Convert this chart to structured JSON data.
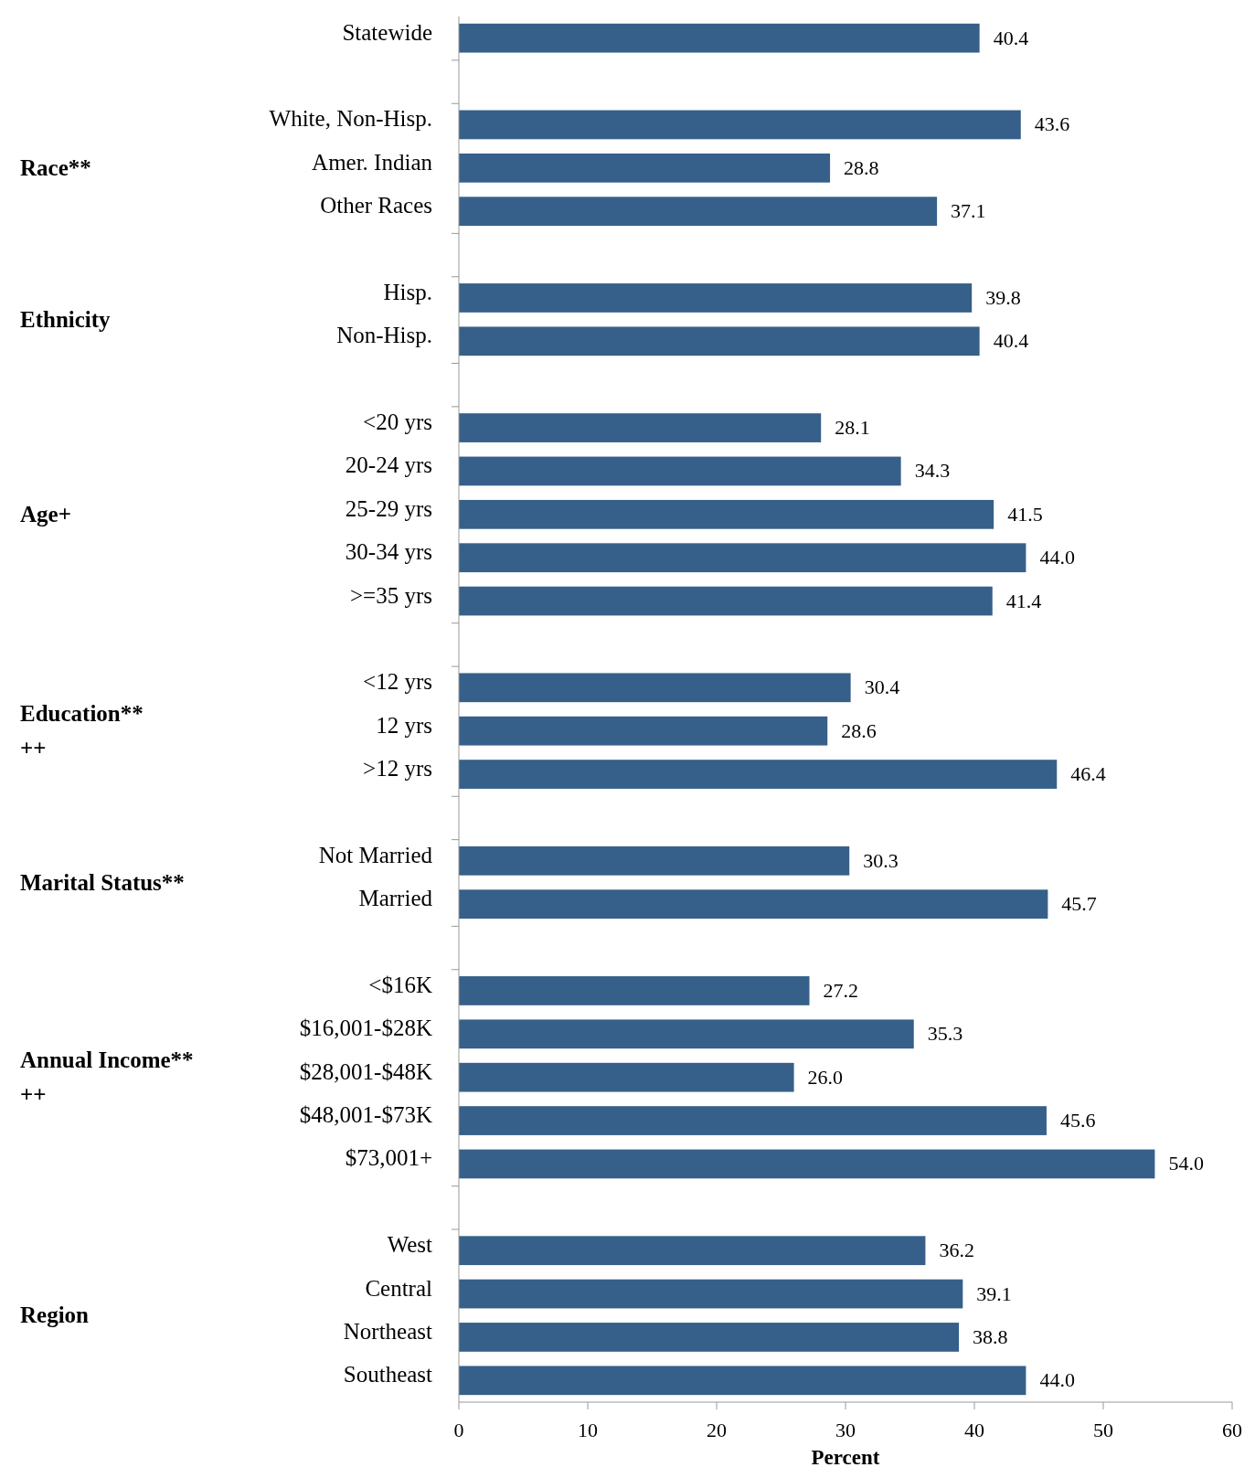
{
  "chart_data": {
    "type": "bar",
    "orientation": "horizontal",
    "xlabel": "Percent",
    "color": "#366089",
    "categories": [
      "Statewide",
      null,
      "White, Non-Hisp.",
      "Amer. Indian",
      "Other Races",
      null,
      "Hisp.",
      "Non-Hisp.",
      null,
      "<20 yrs",
      "20-24 yrs",
      "25-29 yrs",
      "30-34 yrs",
      ">=35 yrs",
      null,
      "<12 yrs",
      "12 yrs",
      ">12 yrs",
      null,
      "Not Married",
      "Married",
      null,
      "<$16K",
      "$16,001-$28K",
      "$28,001-$48K",
      "$48,001-$73K",
      "$73,001+",
      null,
      "West",
      "Central",
      "Northeast",
      "Southeast"
    ],
    "values": [
      40.4,
      null,
      43.6,
      28.8,
      37.1,
      null,
      39.8,
      40.4,
      null,
      28.1,
      34.3,
      41.5,
      44.0,
      41.4,
      null,
      30.4,
      28.6,
      46.4,
      null,
      30.3,
      45.7,
      null,
      27.2,
      35.3,
      26.0,
      45.6,
      54.0,
      null,
      36.2,
      39.1,
      38.8,
      44.0
    ],
    "value_labels": [
      "40.4",
      null,
      "43.6",
      "28.8",
      "37.1",
      null,
      "39.8",
      "40.4",
      null,
      "28.1",
      "34.3",
      "41.5",
      "44.0",
      "41.4",
      null,
      "30.4",
      "28.6",
      "46.4",
      null,
      "30.3",
      "45.7",
      null,
      "27.2",
      "35.3",
      "26.0",
      "45.6",
      "54.0",
      null,
      "36.2",
      "39.1",
      "38.8",
      "44.0"
    ],
    "annotations": [
      "Race**",
      "Ethnicity",
      "Age+",
      "Education**\n++",
      "Marital Status**",
      "Annual Income**\n++",
      "Region"
    ],
    "xlim": [
      0,
      60
    ],
    "xticks": [
      0,
      10,
      20,
      30,
      40,
      50,
      60
    ],
    "grid": false
  }
}
